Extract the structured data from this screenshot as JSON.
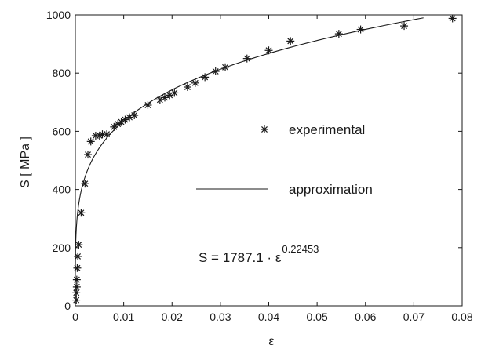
{
  "chart_data": {
    "type": "scatter",
    "xlabel": "ε",
    "ylabel": "S [ MPa ]",
    "xlim": [
      0,
      0.08
    ],
    "ylim": [
      0,
      1000
    ],
    "xticks": [
      0,
      0.01,
      0.02,
      0.03,
      0.04,
      0.05,
      0.06,
      0.07,
      0.08
    ],
    "xtick_labels": [
      "0",
      "0.01",
      "0.02",
      "0.03",
      "0.04",
      "0.05",
      "0.06",
      "0.07",
      "0.08"
    ],
    "yticks": [
      0,
      200,
      400,
      600,
      800,
      1000
    ],
    "ytick_labels": [
      "0",
      "200",
      "400",
      "600",
      "800",
      "1000"
    ],
    "grid": false,
    "legend_position": "right-middle",
    "series": [
      {
        "name": "experimental",
        "marker": "asterisk",
        "points": [
          [
            0.0002,
            20
          ],
          [
            0.0002,
            45
          ],
          [
            0.0003,
            65
          ],
          [
            0.0003,
            90
          ],
          [
            0.0004,
            130
          ],
          [
            0.0005,
            170
          ],
          [
            0.0007,
            210
          ],
          [
            0.0012,
            320
          ],
          [
            0.002,
            420
          ],
          [
            0.0026,
            520
          ],
          [
            0.0032,
            565
          ],
          [
            0.0042,
            585
          ],
          [
            0.005,
            585
          ],
          [
            0.0056,
            590
          ],
          [
            0.0065,
            590
          ],
          [
            0.008,
            615
          ],
          [
            0.0088,
            625
          ],
          [
            0.0095,
            632
          ],
          [
            0.0103,
            640
          ],
          [
            0.0112,
            648
          ],
          [
            0.0122,
            655
          ],
          [
            0.015,
            690
          ],
          [
            0.0175,
            708
          ],
          [
            0.0185,
            716
          ],
          [
            0.0195,
            724
          ],
          [
            0.0205,
            732
          ],
          [
            0.0232,
            752
          ],
          [
            0.0248,
            766
          ],
          [
            0.0268,
            786
          ],
          [
            0.029,
            806
          ],
          [
            0.031,
            820
          ],
          [
            0.0355,
            850
          ],
          [
            0.04,
            878
          ],
          [
            0.0445,
            910
          ],
          [
            0.0545,
            935
          ],
          [
            0.059,
            950
          ],
          [
            0.068,
            962
          ],
          [
            0.078,
            988
          ]
        ]
      },
      {
        "name": "approximation",
        "style": "line",
        "model": {
          "coefficient": 1787.1,
          "exponent": 0.22453
        },
        "domain": [
          5e-06,
          0.072
        ]
      }
    ],
    "annotation": {
      "prefix": "S  =  1787.1 · ε",
      "exponent": "0.22453"
    },
    "colors": {
      "line": "#1a1a1a",
      "marker": "#1a1a1a",
      "background": "#ffffff"
    }
  }
}
